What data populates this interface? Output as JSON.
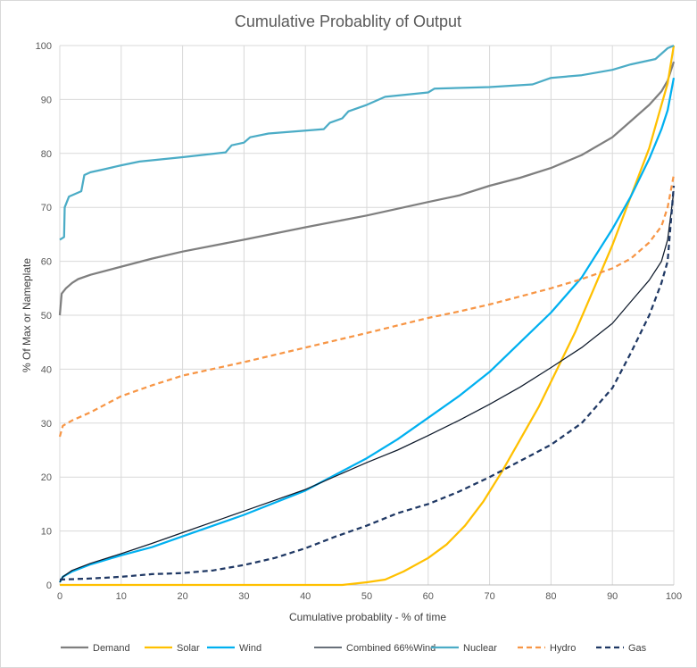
{
  "chart_data": {
    "type": "line",
    "title": "Cumulative Probablity of Output",
    "xlabel": "Cumulative probablity - % of time",
    "ylabel": "% Of Max or Nameplate",
    "xlim": [
      0,
      100
    ],
    "ylim": [
      0,
      100
    ],
    "x_ticks": [
      "0",
      "10",
      "20",
      "30",
      "40",
      "50",
      "60",
      "70",
      "80",
      "90",
      "100"
    ],
    "y_ticks": [
      "0",
      "10",
      "20",
      "30",
      "40",
      "50",
      "60",
      "70",
      "80",
      "90",
      "100"
    ],
    "grid": "vertical-and-horizontal",
    "legend_position": "bottom",
    "series": [
      {
        "name": "Demand",
        "color": "#7F7F7F",
        "dash": "solid",
        "points": [
          [
            0,
            50
          ],
          [
            0.3,
            54
          ],
          [
            1,
            55
          ],
          [
            2,
            56
          ],
          [
            3,
            56.7
          ],
          [
            5,
            57.5
          ],
          [
            10,
            59
          ],
          [
            15,
            60.5
          ],
          [
            20,
            61.8
          ],
          [
            30,
            64
          ],
          [
            40,
            66.3
          ],
          [
            50,
            68.5
          ],
          [
            60,
            71
          ],
          [
            65,
            72.2
          ],
          [
            70,
            74
          ],
          [
            75,
            75.5
          ],
          [
            80,
            77.3
          ],
          [
            85,
            79.7
          ],
          [
            90,
            83
          ],
          [
            93,
            86
          ],
          [
            96,
            89
          ],
          [
            98,
            91.5
          ],
          [
            99,
            93.5
          ],
          [
            100,
            97
          ]
        ]
      },
      {
        "name": "Solar",
        "color": "#FFC000",
        "dash": "solid",
        "points": [
          [
            0,
            0
          ],
          [
            46,
            0
          ],
          [
            50,
            0.5
          ],
          [
            53,
            1
          ],
          [
            56,
            2.5
          ],
          [
            60,
            5
          ],
          [
            63,
            7.5
          ],
          [
            66,
            11
          ],
          [
            69,
            15.5
          ],
          [
            72,
            21
          ],
          [
            75,
            27
          ],
          [
            78,
            33
          ],
          [
            81,
            40
          ],
          [
            84,
            47
          ],
          [
            87,
            55
          ],
          [
            90,
            63
          ],
          [
            93,
            72
          ],
          [
            96,
            81
          ],
          [
            98,
            89
          ],
          [
            99,
            93
          ],
          [
            100,
            100
          ]
        ]
      },
      {
        "name": "Wind",
        "color": "#00B0F0",
        "dash": "solid",
        "points": [
          [
            0,
            0.5
          ],
          [
            0.5,
            1.5
          ],
          [
            2,
            2.5
          ],
          [
            5,
            3.8
          ],
          [
            10,
            5.5
          ],
          [
            15,
            7
          ],
          [
            20,
            9
          ],
          [
            30,
            13
          ],
          [
            40,
            17.5
          ],
          [
            50,
            23.5
          ],
          [
            55,
            27
          ],
          [
            60,
            31
          ],
          [
            65,
            35
          ],
          [
            70,
            39.5
          ],
          [
            75,
            45
          ],
          [
            80,
            50.5
          ],
          [
            85,
            57
          ],
          [
            90,
            66
          ],
          [
            93,
            72
          ],
          [
            96,
            79
          ],
          [
            98,
            84.5
          ],
          [
            99,
            88
          ],
          [
            100,
            94
          ]
        ]
      },
      {
        "name": "Combined 66%Wind",
        "color": "#0E1A2B",
        "dash": "solid",
        "points": [
          [
            0,
            0.5
          ],
          [
            0.5,
            1.5
          ],
          [
            2,
            2.7
          ],
          [
            5,
            4
          ],
          [
            10,
            5.8
          ],
          [
            15,
            7.7
          ],
          [
            20,
            9.7
          ],
          [
            30,
            13.7
          ],
          [
            40,
            17.7
          ],
          [
            50,
            22.7
          ],
          [
            55,
            25
          ],
          [
            60,
            27.7
          ],
          [
            65,
            30.5
          ],
          [
            70,
            33.5
          ],
          [
            75,
            36.7
          ],
          [
            80,
            40.3
          ],
          [
            85,
            44
          ],
          [
            90,
            48.5
          ],
          [
            93,
            52.5
          ],
          [
            96,
            56.5
          ],
          [
            98,
            60
          ],
          [
            99,
            64
          ],
          [
            100,
            73
          ]
        ]
      },
      {
        "name": "Nuclear",
        "color": "#4BACC6",
        "dash": "solid",
        "points": [
          [
            0,
            64
          ],
          [
            0.7,
            64.5
          ],
          [
            0.8,
            70
          ],
          [
            1.5,
            72
          ],
          [
            2.5,
            72.5
          ],
          [
            3.5,
            73
          ],
          [
            4,
            76
          ],
          [
            5,
            76.5
          ],
          [
            7,
            77
          ],
          [
            10,
            77.8
          ],
          [
            13,
            78.5
          ],
          [
            20,
            79.3
          ],
          [
            27,
            80.2
          ],
          [
            28,
            81.5
          ],
          [
            30,
            82
          ],
          [
            31,
            83
          ],
          [
            34,
            83.7
          ],
          [
            43,
            84.5
          ],
          [
            44,
            85.7
          ],
          [
            46,
            86.5
          ],
          [
            47,
            87.8
          ],
          [
            50,
            89
          ],
          [
            53,
            90.5
          ],
          [
            60,
            91.3
          ],
          [
            61,
            92
          ],
          [
            70,
            92.3
          ],
          [
            77,
            92.8
          ],
          [
            80,
            94
          ],
          [
            85,
            94.5
          ],
          [
            90,
            95.5
          ],
          [
            93,
            96.5
          ],
          [
            97,
            97.5
          ],
          [
            98,
            98.5
          ],
          [
            99,
            99.5
          ],
          [
            100,
            100
          ]
        ]
      },
      {
        "name": "Hydro",
        "color": "#F79646",
        "dash": "dashed",
        "points": [
          [
            0,
            27.5
          ],
          [
            0.5,
            29.5
          ],
          [
            2,
            30.5
          ],
          [
            5,
            32
          ],
          [
            10,
            35
          ],
          [
            15,
            37
          ],
          [
            20,
            38.8
          ],
          [
            30,
            41.3
          ],
          [
            40,
            44
          ],
          [
            50,
            46.7
          ],
          [
            60,
            49.5
          ],
          [
            65,
            50.7
          ],
          [
            70,
            52
          ],
          [
            75,
            53.5
          ],
          [
            80,
            55
          ],
          [
            85,
            56.7
          ],
          [
            90,
            58.7
          ],
          [
            93,
            60.5
          ],
          [
            96,
            63.5
          ],
          [
            98,
            66.5
          ],
          [
            99,
            70
          ],
          [
            100,
            76
          ]
        ]
      },
      {
        "name": "Gas",
        "color": "#1F3864",
        "dash": "dashed",
        "points": [
          [
            0,
            1
          ],
          [
            5,
            1.2
          ],
          [
            10,
            1.5
          ],
          [
            15,
            2
          ],
          [
            20,
            2.2
          ],
          [
            25,
            2.7
          ],
          [
            30,
            3.7
          ],
          [
            35,
            5
          ],
          [
            40,
            6.8
          ],
          [
            45,
            9
          ],
          [
            50,
            11
          ],
          [
            55,
            13.3
          ],
          [
            60,
            15
          ],
          [
            65,
            17.3
          ],
          [
            70,
            20
          ],
          [
            75,
            23
          ],
          [
            80,
            26
          ],
          [
            85,
            30
          ],
          [
            90,
            36.5
          ],
          [
            93,
            43
          ],
          [
            96,
            50
          ],
          [
            98,
            56
          ],
          [
            99,
            60
          ],
          [
            100,
            74
          ]
        ]
      }
    ]
  }
}
